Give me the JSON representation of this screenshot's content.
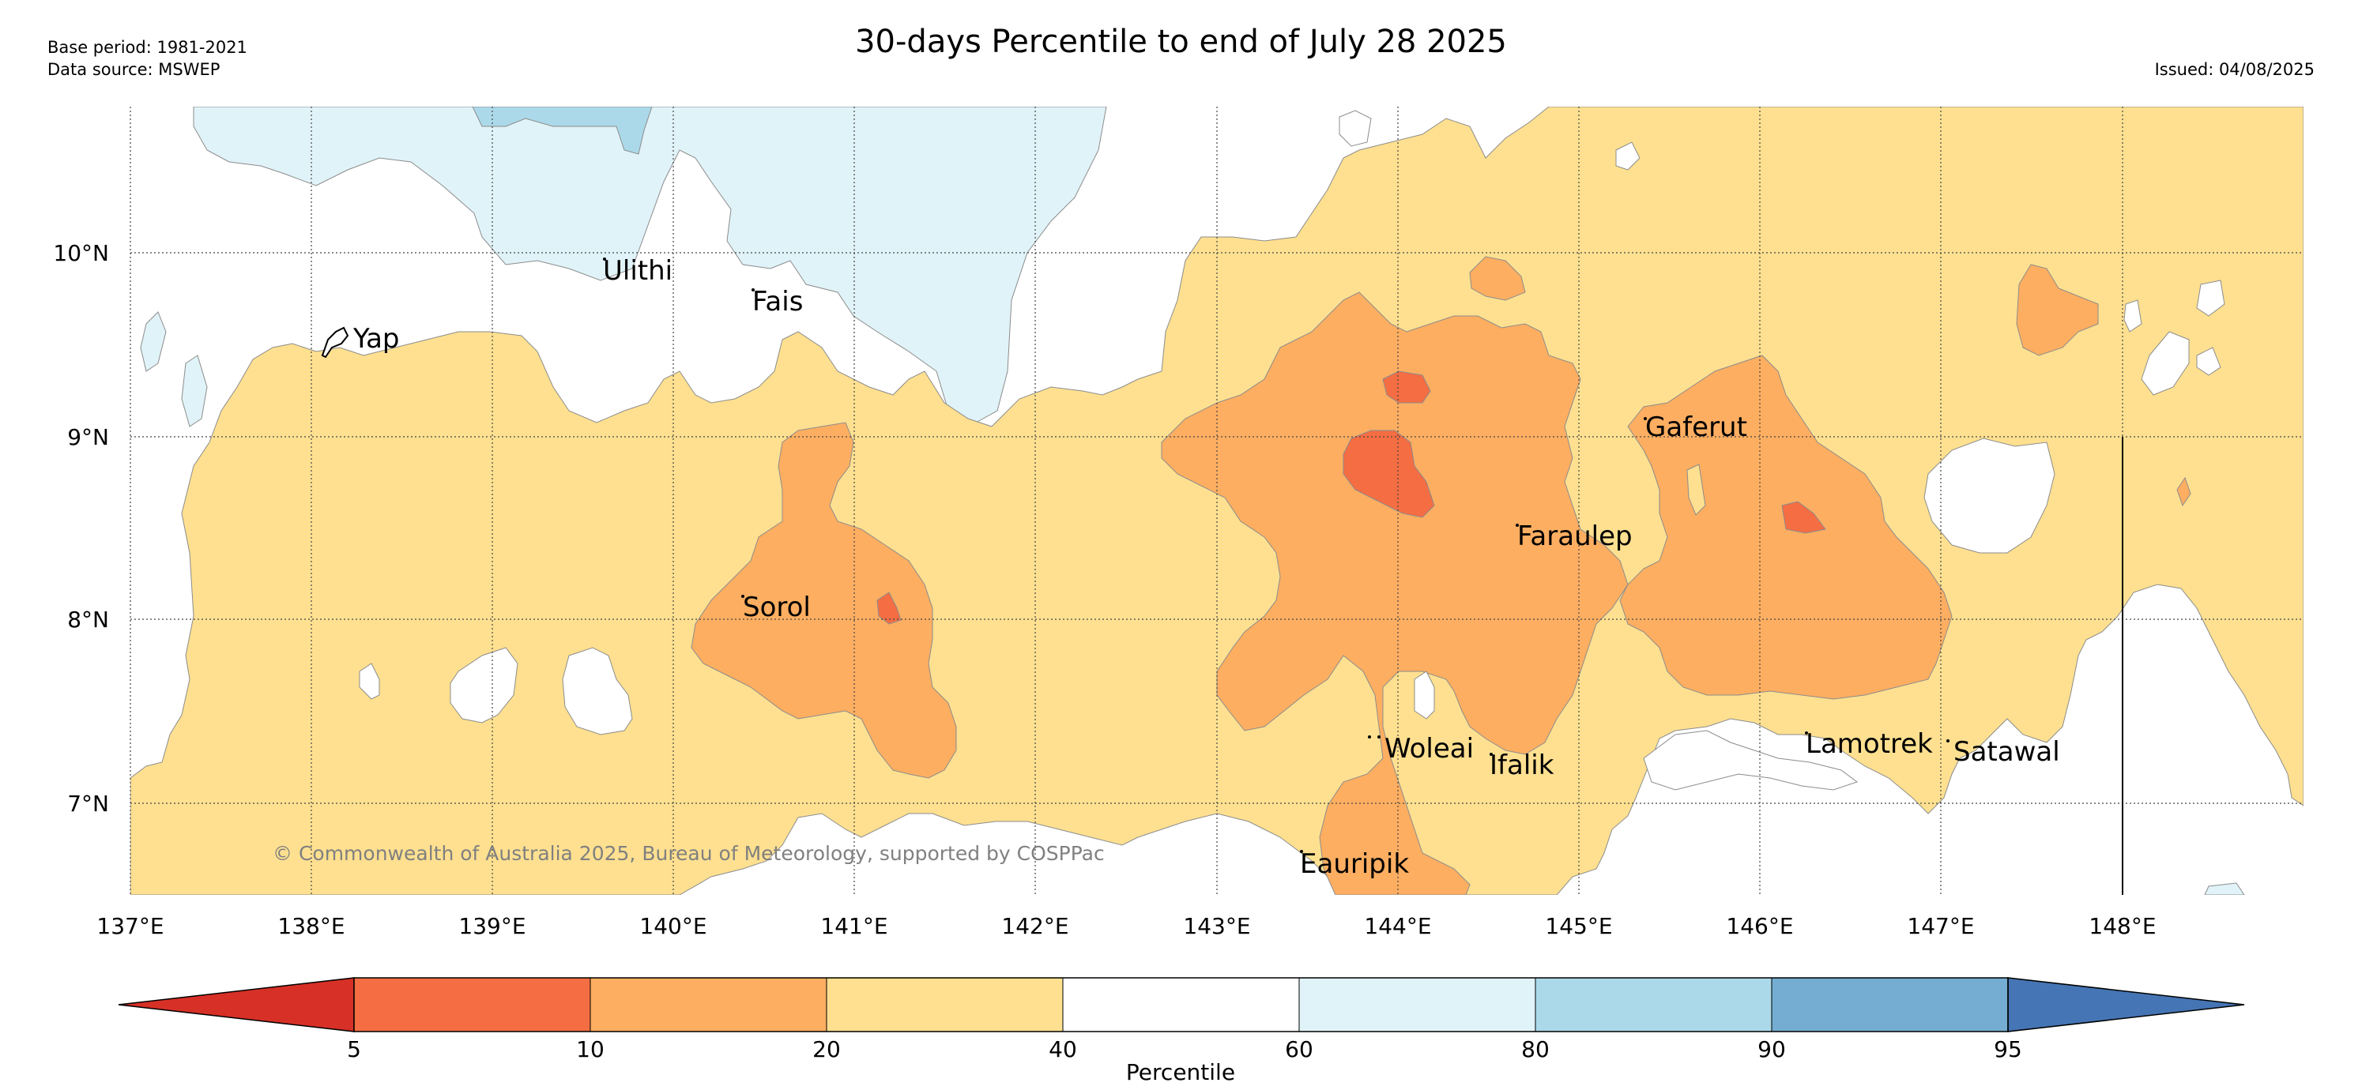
{
  "header": {
    "title": "30-days Percentile to end of July 28 2025",
    "base_period": "Base period: 1981-2021",
    "data_source": "Data source: MSWEP",
    "issued": "Issued: 04/08/2025"
  },
  "map": {
    "lat_labels": [
      "10°N",
      "9°N",
      "8°N",
      "7°N"
    ],
    "lon_labels": [
      "137°E",
      "138°E",
      "139°E",
      "140°E",
      "141°E",
      "142°E",
      "143°E",
      "144°E",
      "145°E",
      "146°E",
      "147°E",
      "148°E"
    ],
    "places": [
      {
        "name": "Ulithi"
      },
      {
        "name": "Fais"
      },
      {
        "name": "Yap"
      },
      {
        "name": "Sorol"
      },
      {
        "name": "Gaferut"
      },
      {
        "name": "Faraulep"
      },
      {
        "name": "Woleai"
      },
      {
        "name": "Ifalik"
      },
      {
        "name": "Lamotrek"
      },
      {
        "name": "Satawal"
      },
      {
        "name": "Eauripik"
      }
    ],
    "copyright": "© Commonwealth of Australia 2025, Bureau of Meteorology, supported by COSPPac",
    "colors": {
      "lt5": "#d73027",
      "p5_10": "#f46d43",
      "p10_20": "#fdae61",
      "p20_40": "#fee090",
      "p40_60": "#ffffff",
      "p60_80": "#e0f3f8",
      "p80_90": "#abd9e9",
      "p90_95": "#74add1",
      "gt95": "#4575b4"
    }
  },
  "colorbar": {
    "ticks": [
      "5",
      "10",
      "20",
      "40",
      "60",
      "80",
      "90",
      "95"
    ],
    "label": "Percentile"
  }
}
